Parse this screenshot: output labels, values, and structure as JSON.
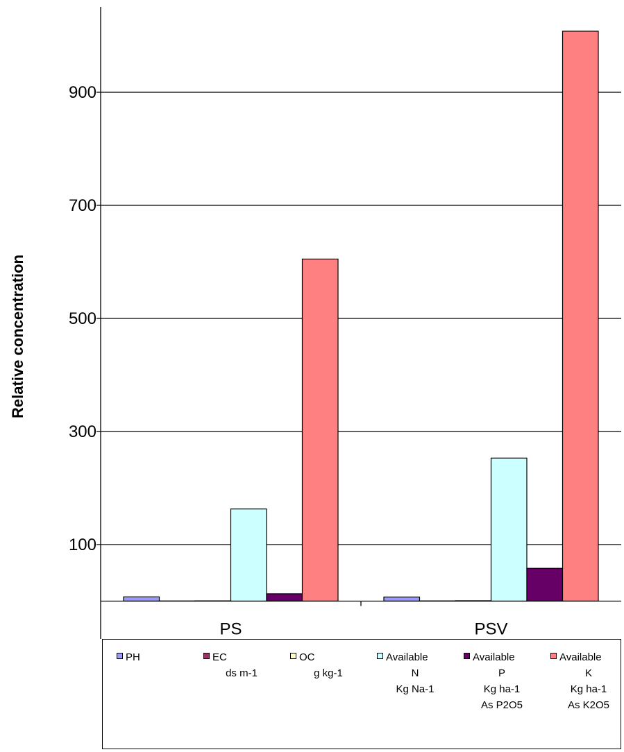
{
  "chart_data": {
    "type": "bar",
    "ylabel": "Relative concentration",
    "categories": [
      "PS",
      "PSV"
    ],
    "ylim": [
      -100,
      1050
    ],
    "yticks": [
      "-100",
      "100",
      "300",
      "500",
      "700",
      "900"
    ],
    "ytick_values": [
      -100,
      100,
      300,
      500,
      700,
      900
    ],
    "grid": true,
    "legend_position": "bottom",
    "series": [
      {
        "name": "PH",
        "legend_lines": [
          "PH"
        ],
        "color": "#9999ff",
        "values": [
          7.5,
          7.2
        ]
      },
      {
        "name": "EC ds m-1",
        "legend_lines": [
          "EC",
          "ds m-1"
        ],
        "color": "#993366",
        "values": [
          0.3,
          0.4
        ]
      },
      {
        "name": "OC g kg-1",
        "legend_lines": [
          "OC",
          "g kg-1"
        ],
        "color": "#ffffcc",
        "values": [
          0.5,
          0.7
        ]
      },
      {
        "name": "Available N Kg Na-1",
        "legend_lines": [
          "Available",
          "N",
          "Kg Na-1"
        ],
        "color": "#ccffff",
        "values": [
          163,
          253
        ]
      },
      {
        "name": "Available P Kg ha-1 As P2O5",
        "legend_lines": [
          "Available",
          "P",
          "Kg ha-1",
          "As P2O5"
        ],
        "color": "#660066",
        "values": [
          13,
          58
        ]
      },
      {
        "name": "Available K Kg ha-1 As K2O5",
        "legend_lines": [
          "Available",
          "K",
          "Kg ha-1",
          "As K2O5"
        ],
        "color": "#ff8080",
        "values": [
          605,
          1008
        ]
      }
    ]
  }
}
